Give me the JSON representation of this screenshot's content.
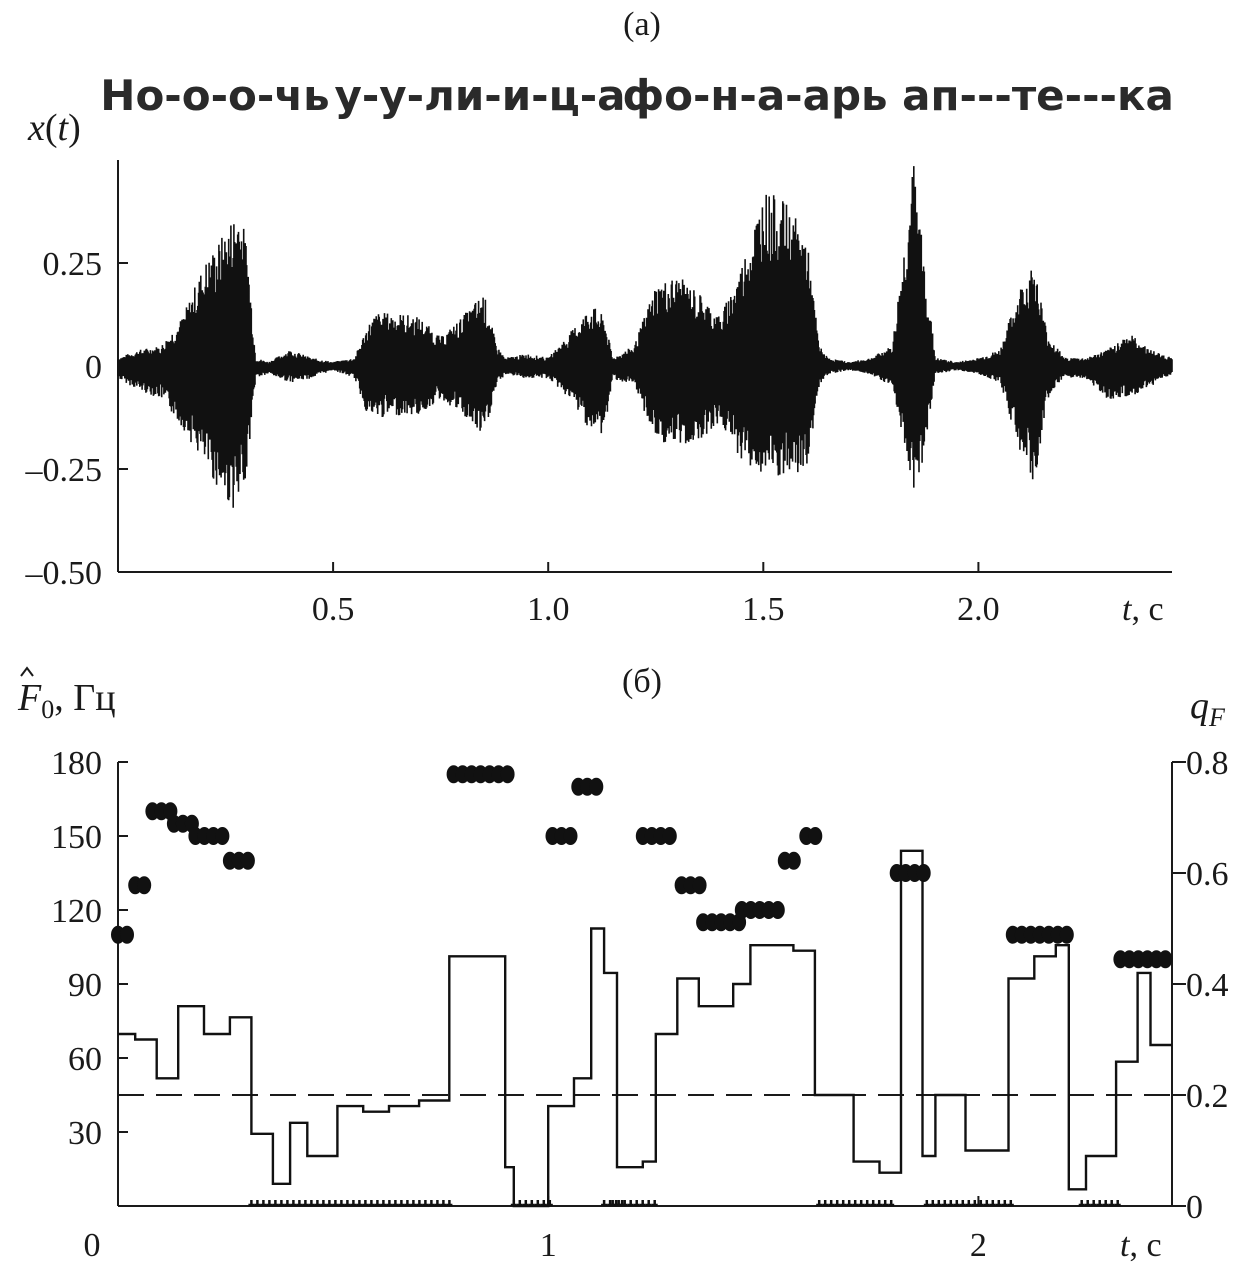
{
  "chart_data": [
    {
      "panel_label": "(а)",
      "type": "line",
      "words": [
        "Но-о-о-чь",
        "у-у-ли-и-ц-а",
        "фо-н-а-арь",
        "ап---те---ка"
      ],
      "ylabel_main": "x",
      "ylabel_arg": "t",
      "xlabel_main": "t",
      "xlabel_unit": ", с",
      "xlim": [
        0,
        2.45
      ],
      "ylim": [
        -0.5,
        0.5
      ],
      "xticks": [
        0.5,
        1.0,
        1.5,
        2.0
      ],
      "xtick_labels": [
        "0.5",
        "1.0",
        "1.5",
        "2.0"
      ],
      "yticks": [
        0.25,
        0,
        -0.25,
        -0.5
      ],
      "ytick_labels": [
        "0.25",
        "0",
        "–0.25",
        "–0.50"
      ],
      "envelope": {
        "t": [
          0.0,
          0.05,
          0.1,
          0.15,
          0.2,
          0.25,
          0.28,
          0.3,
          0.32,
          0.35,
          0.4,
          0.45,
          0.5,
          0.55,
          0.58,
          0.6,
          0.65,
          0.7,
          0.75,
          0.8,
          0.85,
          0.88,
          0.9,
          0.95,
          1.0,
          1.05,
          1.1,
          1.13,
          1.15,
          1.2,
          1.25,
          1.3,
          1.35,
          1.4,
          1.45,
          1.5,
          1.55,
          1.6,
          1.63,
          1.65,
          1.7,
          1.75,
          1.8,
          1.85,
          1.87,
          1.9,
          1.95,
          2.0,
          2.05,
          2.1,
          2.13,
          2.16,
          2.2,
          2.25,
          2.3,
          2.35,
          2.4,
          2.45
        ],
        "upper": [
          0.02,
          0.04,
          0.05,
          0.12,
          0.25,
          0.33,
          0.4,
          0.3,
          0.02,
          0.01,
          0.04,
          0.02,
          0.01,
          0.02,
          0.1,
          0.13,
          0.13,
          0.12,
          0.07,
          0.12,
          0.18,
          0.05,
          0.02,
          0.03,
          0.02,
          0.08,
          0.15,
          0.12,
          0.02,
          0.05,
          0.2,
          0.22,
          0.18,
          0.12,
          0.25,
          0.43,
          0.4,
          0.32,
          0.05,
          0.02,
          0.01,
          0.02,
          0.05,
          0.5,
          0.3,
          0.02,
          0.01,
          0.02,
          0.04,
          0.2,
          0.25,
          0.08,
          0.02,
          0.02,
          0.04,
          0.08,
          0.04,
          0.02
        ],
        "lower": [
          -0.03,
          -0.06,
          -0.08,
          -0.15,
          -0.24,
          -0.33,
          -0.36,
          -0.25,
          -0.03,
          -0.02,
          -0.04,
          -0.03,
          -0.01,
          -0.03,
          -0.12,
          -0.13,
          -0.12,
          -0.12,
          -0.08,
          -0.12,
          -0.18,
          -0.05,
          -0.02,
          -0.03,
          -0.03,
          -0.08,
          -0.16,
          -0.17,
          -0.03,
          -0.05,
          -0.18,
          -0.2,
          -0.18,
          -0.14,
          -0.23,
          -0.27,
          -0.28,
          -0.26,
          -0.05,
          -0.02,
          -0.01,
          -0.02,
          -0.05,
          -0.3,
          -0.24,
          -0.02,
          -0.01,
          -0.02,
          -0.04,
          -0.22,
          -0.3,
          -0.08,
          -0.03,
          -0.03,
          -0.08,
          -0.08,
          -0.05,
          -0.02
        ]
      }
    },
    {
      "panel_label": "(б)",
      "type": "scatter",
      "ylabel_main": "F",
      "ylabel_sub": "0",
      "ylabel_unit": ", Гц",
      "ylabel_right_main": "q",
      "ylabel_right_sub": "F",
      "xlabel_main": "t",
      "xlabel_unit": ", с",
      "xlim": [
        0,
        2.45
      ],
      "ylim": [
        0,
        180
      ],
      "ylim_right": [
        0,
        0.8
      ],
      "xticks": [
        0,
        1,
        2
      ],
      "xtick_labels": [
        "0",
        "1",
        "2"
      ],
      "yticks": [
        30,
        60,
        90,
        120,
        150,
        180
      ],
      "ytick_labels": [
        "30",
        "60",
        "90",
        "120",
        "150",
        "180"
      ],
      "yticks_right": [
        0,
        0.2,
        0.4,
        0.6,
        0.8
      ],
      "ytick_right_labels": [
        "0",
        "0.2",
        "0.4",
        "0.6",
        "0.8"
      ],
      "threshold_qF": 0.2,
      "F0_segments": [
        {
          "t0": 0.0,
          "t1": 0.04,
          "f": 110
        },
        {
          "t0": 0.04,
          "t1": 0.08,
          "f": 130
        },
        {
          "t0": 0.08,
          "t1": 0.13,
          "f": 160
        },
        {
          "t0": 0.13,
          "t1": 0.18,
          "f": 155
        },
        {
          "t0": 0.18,
          "t1": 0.26,
          "f": 150
        },
        {
          "t0": 0.26,
          "t1": 0.32,
          "f": 140
        },
        {
          "t0": 0.78,
          "t1": 0.91,
          "f": 175
        },
        {
          "t0": 0.92,
          "t1": 1.01,
          "f": 0
        },
        {
          "t0": 1.01,
          "t1": 1.07,
          "f": 150
        },
        {
          "t0": 1.07,
          "t1": 1.13,
          "f": 170
        },
        {
          "t0": 1.13,
          "t1": 1.18,
          "f": 0
        },
        {
          "t0": 1.15,
          "t1": 1.25,
          "f": 0
        },
        {
          "t0": 1.22,
          "t1": 1.29,
          "f": 150
        },
        {
          "t0": 1.31,
          "t1": 1.37,
          "f": 130
        },
        {
          "t0": 1.36,
          "t1": 1.45,
          "f": 115
        },
        {
          "t0": 1.45,
          "t1": 1.55,
          "f": 120
        },
        {
          "t0": 1.55,
          "t1": 1.59,
          "f": 140
        },
        {
          "t0": 1.6,
          "t1": 1.63,
          "f": 150
        },
        {
          "t0": 1.63,
          "t1": 1.81,
          "f": 0
        },
        {
          "t0": 1.81,
          "t1": 1.88,
          "f": 135
        },
        {
          "t0": 1.88,
          "t1": 2.08,
          "f": 0
        },
        {
          "t0": 2.08,
          "t1": 2.22,
          "f": 110
        },
        {
          "t0": 2.24,
          "t1": 2.33,
          "f": 0
        },
        {
          "t0": 2.33,
          "t1": 2.45,
          "f": 100
        },
        {
          "t0": 0.31,
          "t1": 0.78,
          "f": 0
        }
      ],
      "qF_step": {
        "t": [
          0.0,
          0.04,
          0.09,
          0.14,
          0.2,
          0.26,
          0.31,
          0.36,
          0.4,
          0.44,
          0.51,
          0.57,
          0.63,
          0.7,
          0.77,
          0.79,
          0.9,
          0.92,
          1.0,
          1.06,
          1.1,
          1.13,
          1.16,
          1.22,
          1.25,
          1.3,
          1.35,
          1.43,
          1.47,
          1.57,
          1.62,
          1.67,
          1.71,
          1.77,
          1.82,
          1.87,
          1.9,
          1.97,
          2.03,
          2.07,
          2.13,
          2.18,
          2.21,
          2.25,
          2.32,
          2.37,
          2.4,
          2.45
        ],
        "q": [
          0.31,
          0.3,
          0.23,
          0.36,
          0.31,
          0.34,
          0.13,
          0.04,
          0.15,
          0.09,
          0.18,
          0.17,
          0.18,
          0.19,
          0.45,
          0.45,
          0.07,
          0.0,
          0.18,
          0.23,
          0.5,
          0.42,
          0.07,
          0.08,
          0.31,
          0.41,
          0.36,
          0.4,
          0.47,
          0.46,
          0.2,
          0.2,
          0.08,
          0.06,
          0.64,
          0.09,
          0.2,
          0.1,
          0.1,
          0.41,
          0.45,
          0.47,
          0.03,
          0.09,
          0.26,
          0.42,
          0.29,
          0.29
        ]
      }
    }
  ]
}
